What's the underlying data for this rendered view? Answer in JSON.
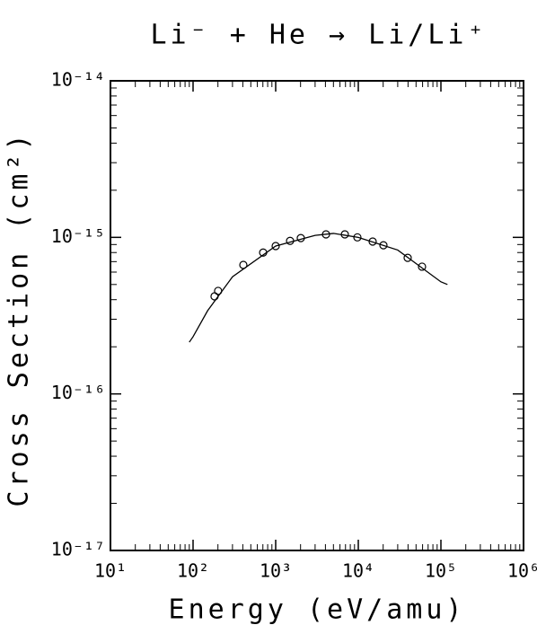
{
  "chart_data": {
    "type": "scatter",
    "title": "Li⁻ + He → Li/Li⁺",
    "x_label": "Energy (eV/amu)",
    "y_label": "Cross Section (cm²)",
    "xscale": "log",
    "yscale": "log",
    "xlim": [
      10,
      1000000
    ],
    "ylim": [
      1e-17,
      1e-14
    ],
    "xticks": [
      {
        "value": 10,
        "label": "10¹"
      },
      {
        "value": 100,
        "label": "10²"
      },
      {
        "value": 1000,
        "label": "10³"
      },
      {
        "value": 10000,
        "label": "10⁴"
      },
      {
        "value": 100000,
        "label": "10⁵"
      },
      {
        "value": 1000000,
        "label": "10⁶"
      }
    ],
    "yticks": [
      {
        "value": 1e-17,
        "label": "10⁻¹⁷"
      },
      {
        "value": 1e-16,
        "label": "10⁻¹⁶"
      },
      {
        "value": 1e-15,
        "label": "10⁻¹⁵"
      },
      {
        "value": 1e-14,
        "label": "10⁻¹⁴"
      }
    ],
    "series": [
      {
        "style": "markers",
        "color": "#000000",
        "x": [
          182,
          201,
          406,
          705,
          1000,
          1493,
          2014,
          4064,
          6875,
          9750,
          14930,
          20140,
          39600,
          59100
        ],
        "values": [
          4.2e-16,
          4.55e-16,
          6.67e-16,
          8e-16,
          8.8e-16,
          9.5e-16,
          9.9e-16,
          1.045e-15,
          1.045e-15,
          1e-15,
          9.4e-16,
          8.9e-16,
          7.4e-16,
          6.5e-16
        ]
      },
      {
        "style": "line",
        "color": "#000000",
        "x": [
          90,
          100,
          150,
          300,
          1000,
          3000,
          5000,
          10000,
          30000,
          100000,
          120000
        ],
        "values": [
          2.14e-16,
          2.32e-16,
          3.4e-16,
          5.6e-16,
          8.8e-16,
          1.03e-15,
          1.06e-15,
          1e-15,
          8.3e-16,
          5.2e-16,
          5e-16
        ]
      }
    ]
  }
}
